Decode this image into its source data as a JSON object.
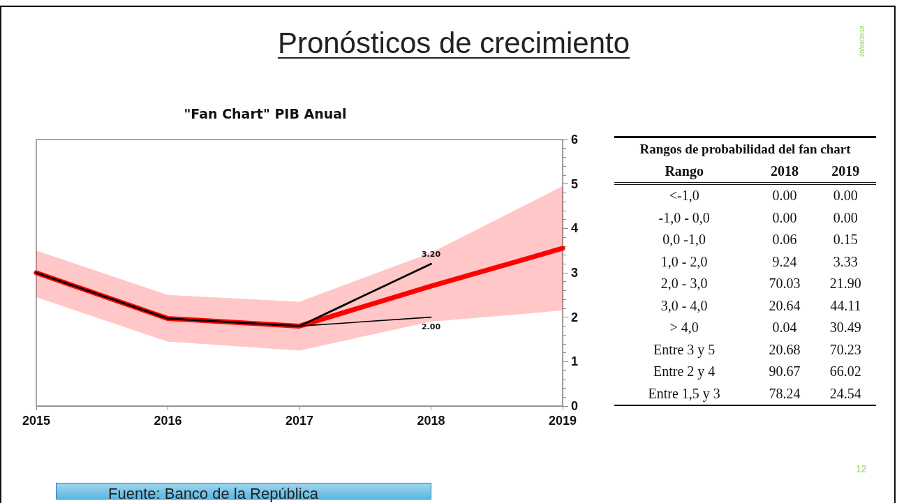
{
  "chart_data": [
    {
      "type": "line",
      "title": "Pronósticos de crecimiento",
      "subtitle": "\"Fan Chart\" PIB Anual",
      "x": [
        2015,
        2016,
        2017,
        2018,
        2019
      ],
      "series": [
        {
          "color": "#ff0000",
          "values": [
            3.0,
            1.97,
            1.8,
            2.7,
            3.55
          ],
          "lower": [
            2.45,
            1.45,
            1.25,
            1.9,
            2.15
          ],
          "upper": [
            3.5,
            2.5,
            2.35,
            3.45,
            4.95
          ]
        },
        {
          "color": "#000000",
          "x": [
            2015,
            2016,
            2017,
            2018
          ],
          "values": [
            3.0,
            1.97,
            1.8,
            3.2
          ],
          "value_labels": [
            null,
            null,
            null,
            "3.20"
          ]
        },
        {
          "color": "#000000",
          "x": [
            2017,
            2018
          ],
          "values": [
            1.8,
            2.0
          ],
          "value_labels": [
            null,
            "2.00"
          ]
        }
      ],
      "xlim": [
        2015,
        2019
      ],
      "xticks": [
        2015,
        2016,
        2017,
        2018,
        2019
      ],
      "ylim": [
        0,
        6
      ],
      "yticks": [
        0,
        1,
        2,
        3,
        4,
        5,
        6
      ],
      "grid": false,
      "marker": "none",
      "annotations": [
        "20/09/2018",
        "12",
        "Fuente: Banco de la República"
      ]
    },
    {
      "type": "other",
      "title": "Rangos de probabilidad del fan chart",
      "xlabel": "Rango",
      "categories": [
        "<-1,0",
        "-1,0 - 0,0",
        "0,0 -1,0",
        "1,0 - 2,0",
        "2,0 - 3,0",
        "3,0 - 4,0",
        "> 4,0",
        "Entre 3 y 5",
        "Entre 2 y 4",
        "Entre 1,5 y 3"
      ],
      "series": [
        {
          "name": "2018",
          "values": [
            0.0,
            0.0,
            0.06,
            9.24,
            70.03,
            20.64,
            0.04,
            20.68,
            90.67,
            78.24
          ],
          "value_labels": [
            "0.00",
            "0.00",
            "0.06",
            "9.24",
            "70.03",
            "20.64",
            "0.04",
            "20.68",
            "90.67",
            "78.24"
          ]
        },
        {
          "name": "2019",
          "values": [
            0.0,
            0.0,
            0.15,
            3.33,
            21.9,
            44.11,
            30.49,
            70.23,
            66.02,
            24.54
          ],
          "value_labels": [
            "0.00",
            "0.00",
            "0.15",
            "3.33",
            "21.90",
            "44.11",
            "30.49",
            "70.23",
            "66.02",
            "24.54"
          ]
        }
      ],
      "data_labels": true
    }
  ]
}
